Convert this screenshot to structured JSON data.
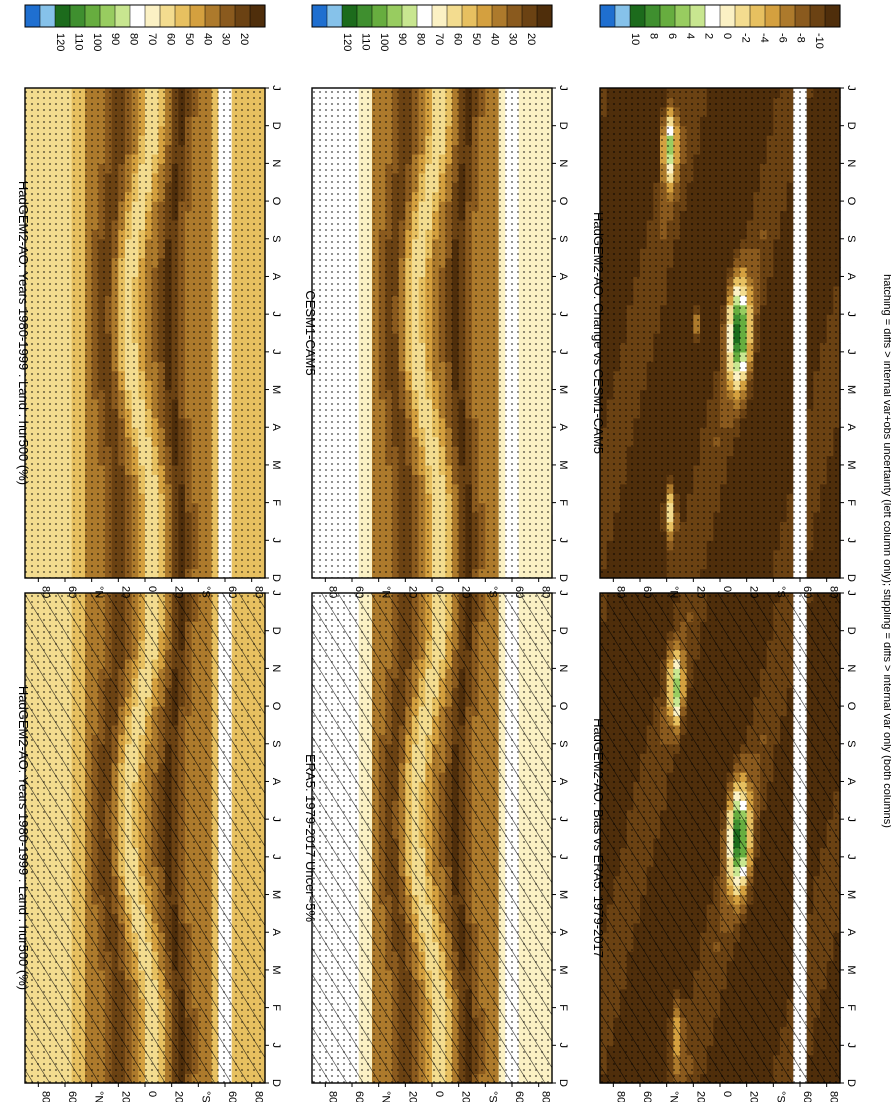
{
  "figure": {
    "footnote": "hatching = diffs > internal var+obs uncertainty (left column only); stippling = diffs > internal var only (both columns)"
  },
  "chart_data": [
    {
      "type": "heatmap",
      "title": "HadGEM2-AO: Years 1980-1999 : Land : hur500 (%)",
      "months": [
        "D",
        "J",
        "F",
        "M",
        "A",
        "M",
        "J",
        "J",
        "A",
        "S",
        "O",
        "N",
        "D",
        "J"
      ],
      "lat_ticks": [
        "80",
        "60",
        "°N",
        "20",
        "0",
        "20",
        "°S",
        "60",
        "80"
      ],
      "colorbar_labels": [
        "120",
        "110",
        "100",
        "90",
        "80",
        "70",
        "60",
        "50",
        "40",
        "30",
        "20"
      ],
      "hatching": true,
      "stippling": true,
      "scheme": "abs"
    },
    {
      "type": "heatmap",
      "title": "HadGEM2-AO: Years 1980-1999 : Land : hur500 (%)",
      "months": [
        "D",
        "J",
        "F",
        "M",
        "A",
        "M",
        "J",
        "J",
        "A",
        "S",
        "O",
        "N",
        "D",
        "J"
      ],
      "lat_ticks": [
        "80",
        "60",
        "°N",
        "20",
        "0",
        "20",
        "°S",
        "60",
        "80"
      ],
      "colorbar_labels": [
        "120",
        "110",
        "100",
        "90",
        "80",
        "70",
        "60",
        "50",
        "40",
        "30",
        "20"
      ],
      "hatching": false,
      "stippling": true,
      "scheme": "abs"
    },
    {
      "type": "heatmap",
      "title": "ERA5: 1979-2017 Uncer~5%",
      "months": [
        "D",
        "J",
        "F",
        "M",
        "A",
        "M",
        "J",
        "J",
        "A",
        "S",
        "O",
        "N",
        "D",
        "J"
      ],
      "lat_ticks": [
        "80",
        "60",
        "°N",
        "20",
        "0",
        "20",
        "°S",
        "60",
        "80"
      ],
      "colorbar_labels": [
        "120",
        "110",
        "100",
        "90",
        "80",
        "70",
        "60",
        "50",
        "40",
        "30",
        "20"
      ],
      "hatching": true,
      "stippling": true,
      "scheme": "obs"
    },
    {
      "type": "heatmap",
      "title": "CESM1-CAM5",
      "months": [
        "D",
        "J",
        "F",
        "M",
        "A",
        "M",
        "J",
        "J",
        "A",
        "S",
        "O",
        "N",
        "D",
        "J"
      ],
      "lat_ticks": [
        "80",
        "60",
        "°N",
        "20",
        "0",
        "20",
        "°S",
        "60",
        "80"
      ],
      "colorbar_labels": [
        "120",
        "110",
        "100",
        "90",
        "80",
        "70",
        "60",
        "50",
        "40",
        "30",
        "20"
      ],
      "hatching": false,
      "stippling": true,
      "scheme": "obs"
    },
    {
      "type": "heatmap",
      "title": "HadGEM2-AO: Bias vs ERA5: 1979-2017",
      "months": [
        "D",
        "J",
        "F",
        "M",
        "A",
        "M",
        "J",
        "J",
        "A",
        "S",
        "O",
        "N",
        "D",
        "J"
      ],
      "lat_ticks": [
        "80",
        "60",
        "°N",
        "20",
        "0",
        "20",
        "°S",
        "60",
        "80"
      ],
      "colorbar_labels": [
        "10",
        "8",
        "6",
        "4",
        "2",
        "0",
        "-2",
        "-4",
        "-6",
        "-8",
        "-10"
      ],
      "hatching": true,
      "stippling": true,
      "scheme": "diff"
    },
    {
      "type": "heatmap",
      "title": "HadGEM2-AO: Change vs CESM1-CAM5",
      "months": [
        "D",
        "J",
        "F",
        "M",
        "A",
        "M",
        "J",
        "J",
        "A",
        "S",
        "O",
        "N",
        "D",
        "J"
      ],
      "lat_ticks": [
        "80",
        "60",
        "°N",
        "20",
        "0",
        "20",
        "°S",
        "60",
        "80"
      ],
      "colorbar_labels": [
        "10",
        "8",
        "6",
        "4",
        "2",
        "0",
        "-2",
        "-4",
        "-6",
        "-8",
        "-10"
      ],
      "hatching": false,
      "stippling": true,
      "scheme": "diff"
    }
  ],
  "colors": {
    "scale": [
      "#1f6fd0",
      "#86c2ea",
      "#1c6b1c",
      "#3f8f2f",
      "#67ad3f",
      "#98cc60",
      "#c8e690",
      "#ffffff",
      "#fbf1c4",
      "#f3dc8f",
      "#e7c060",
      "#d4a03f",
      "#ad7a2c",
      "#8a5a1e",
      "#6b4213",
      "#4f2e0b"
    ]
  }
}
